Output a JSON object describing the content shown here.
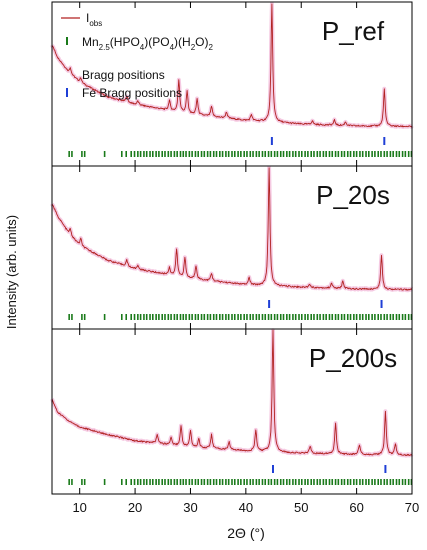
{
  "chart_data": {
    "type": "line",
    "xlabel": "2Θ (°)",
    "ylabel": "Intensity (arb. units)",
    "xlim": [
      5,
      70
    ],
    "xticks": [
      10,
      20,
      30,
      40,
      50,
      60,
      70
    ],
    "grid": false,
    "legend": {
      "placement": "top-left",
      "entries": [
        {
          "label_main": "I",
          "label_sub": "obs",
          "marker": "line",
          "color": "#b22222"
        },
        {
          "label": "Mn2.5(HPO4)(PO4)(H2O)2 Bragg positions",
          "marker": "tick",
          "color": "#1a7a1a"
        },
        {
          "label": "Fe Bragg positions",
          "marker": "tick",
          "color": "#1f3fd6"
        }
      ]
    },
    "colors": {
      "observed": "#b22222",
      "fit_band": "#f2b8d8",
      "phase_ticks": "#1a7a1a",
      "fe_ticks": "#1f3fd6"
    },
    "panels": [
      {
        "label": "P_ref",
        "background": {
          "x": [
            5,
            6,
            8,
            10,
            15,
            20,
            30,
            40,
            50,
            60,
            70
          ],
          "y": [
            0.72,
            0.62,
            0.5,
            0.42,
            0.3,
            0.24,
            0.16,
            0.11,
            0.08,
            0.065,
            0.06
          ]
        },
        "peaks": [
          {
            "x": 8.3,
            "h": 0.05
          },
          {
            "x": 10.2,
            "h": 0.04
          },
          {
            "x": 18.5,
            "h": 0.05
          },
          {
            "x": 20.5,
            "h": 0.03
          },
          {
            "x": 26.2,
            "h": 0.08
          },
          {
            "x": 27.9,
            "h": 0.26
          },
          {
            "x": 29.4,
            "h": 0.18
          },
          {
            "x": 31.2,
            "h": 0.13
          },
          {
            "x": 33.8,
            "h": 0.08
          },
          {
            "x": 36.5,
            "h": 0.05
          },
          {
            "x": 41.0,
            "h": 0.05
          },
          {
            "x": 44.7,
            "h": 0.95
          },
          {
            "x": 52.0,
            "h": 0.03
          },
          {
            "x": 56.0,
            "h": 0.04
          },
          {
            "x": 58.0,
            "h": 0.03
          },
          {
            "x": 65.0,
            "h": 0.3
          }
        ],
        "fe_positions": [
          44.7,
          65.0
        ]
      },
      {
        "label": "P_20s",
        "background": {
          "x": [
            5,
            6,
            8,
            10,
            15,
            20,
            30,
            40,
            50,
            60,
            70
          ],
          "y": [
            0.76,
            0.66,
            0.52,
            0.42,
            0.3,
            0.23,
            0.15,
            0.1,
            0.08,
            0.065,
            0.06
          ]
        },
        "peaks": [
          {
            "x": 8.3,
            "h": 0.05
          },
          {
            "x": 10.2,
            "h": 0.06
          },
          {
            "x": 18.5,
            "h": 0.05
          },
          {
            "x": 20.5,
            "h": 0.03
          },
          {
            "x": 26.2,
            "h": 0.06
          },
          {
            "x": 27.5,
            "h": 0.22
          },
          {
            "x": 29.0,
            "h": 0.16
          },
          {
            "x": 31.0,
            "h": 0.11
          },
          {
            "x": 33.8,
            "h": 0.06
          },
          {
            "x": 40.6,
            "h": 0.06
          },
          {
            "x": 44.2,
            "h": 0.96
          },
          {
            "x": 51.5,
            "h": 0.03
          },
          {
            "x": 55.5,
            "h": 0.04
          },
          {
            "x": 57.5,
            "h": 0.06
          },
          {
            "x": 64.5,
            "h": 0.28
          }
        ],
        "fe_positions": [
          44.2,
          64.5
        ]
      },
      {
        "label": "P_200s",
        "background": {
          "x": [
            5,
            6,
            8,
            10,
            15,
            20,
            30,
            40,
            50,
            60,
            70
          ],
          "y": [
            0.5,
            0.4,
            0.33,
            0.28,
            0.22,
            0.17,
            0.12,
            0.09,
            0.07,
            0.06,
            0.055
          ]
        },
        "peaks": [
          {
            "x": 24.0,
            "h": 0.07
          },
          {
            "x": 26.5,
            "h": 0.06
          },
          {
            "x": 28.3,
            "h": 0.16
          },
          {
            "x": 30.0,
            "h": 0.13
          },
          {
            "x": 31.5,
            "h": 0.07
          },
          {
            "x": 33.8,
            "h": 0.11
          },
          {
            "x": 37.0,
            "h": 0.06
          },
          {
            "x": 41.8,
            "h": 0.17
          },
          {
            "x": 44.9,
            "h": 0.97
          },
          {
            "x": 51.6,
            "h": 0.06
          },
          {
            "x": 56.2,
            "h": 0.25
          },
          {
            "x": 60.5,
            "h": 0.08
          },
          {
            "x": 65.2,
            "h": 0.35
          },
          {
            "x": 67.0,
            "h": 0.09
          }
        ],
        "fe_positions": [
          44.9,
          65.2
        ]
      }
    ],
    "phase_tick_positions": [
      8.1,
      8.6,
      10.4,
      10.9,
      14.5,
      17.6,
      18.4,
      19.3,
      19.9,
      20.5,
      21.0,
      21.6,
      22.1,
      22.7,
      23.2,
      23.8,
      24.3,
      24.9,
      25.4,
      26.0,
      26.5,
      27.1,
      27.6,
      28.2,
      28.7,
      29.2,
      29.8,
      30.3,
      30.9,
      31.4,
      32.0,
      32.5,
      33.1,
      33.6,
      34.2,
      34.7,
      35.3,
      35.8,
      36.4,
      36.9,
      37.5,
      38.0,
      38.6,
      39.1,
      39.7,
      40.2,
      40.8,
      41.3,
      41.9,
      42.4,
      43.0,
      43.5,
      44.1,
      44.6,
      45.2,
      45.7,
      46.3,
      46.8,
      47.4,
      47.9,
      48.5,
      49.0,
      49.6,
      50.1,
      50.7,
      51.2,
      51.8,
      52.3,
      52.9,
      53.4,
      54.0,
      54.5,
      55.1,
      55.6,
      56.2,
      56.7,
      57.3,
      57.8,
      58.4,
      58.9,
      59.5,
      60.0,
      60.6,
      61.1,
      61.7,
      62.2,
      62.8,
      63.3,
      63.9,
      64.4,
      65.0,
      65.5,
      66.1,
      66.6,
      67.2,
      67.7,
      68.3,
      68.8,
      69.4,
      69.9
    ]
  }
}
